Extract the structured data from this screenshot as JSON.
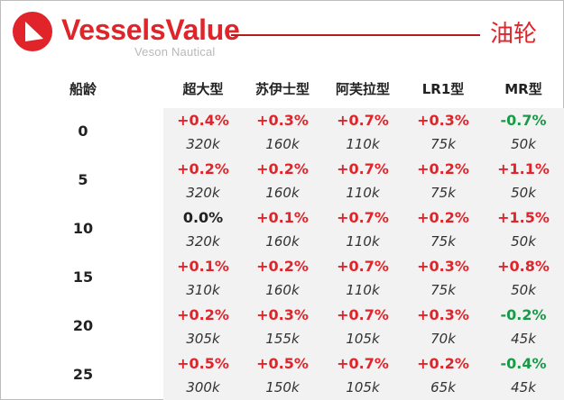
{
  "header": {
    "brand": "VesselsValue",
    "brand_sub": "Veson Nautical",
    "title": "油轮",
    "colors": {
      "brand_red": "#e0242a",
      "rule": "#b51d1d",
      "up": "#e0242a",
      "down": "#1a9a48"
    }
  },
  "table": {
    "age_header": "船龄",
    "columns": [
      "超大型",
      "苏伊士型",
      "阿芙拉型",
      "LR1型",
      "MR型"
    ],
    "rows": [
      {
        "age": "0",
        "cells": [
          {
            "pct": "+0.4%",
            "dir": "up",
            "val": "320k"
          },
          {
            "pct": "+0.3%",
            "dir": "up",
            "val": "160k"
          },
          {
            "pct": "+0.7%",
            "dir": "up",
            "val": "110k"
          },
          {
            "pct": "+0.3%",
            "dir": "up",
            "val": "75k"
          },
          {
            "pct": "-0.7%",
            "dir": "down",
            "val": "50k"
          }
        ]
      },
      {
        "age": "5",
        "cells": [
          {
            "pct": "+0.2%",
            "dir": "up",
            "val": "320k"
          },
          {
            "pct": "+0.2%",
            "dir": "up",
            "val": "160k"
          },
          {
            "pct": "+0.7%",
            "dir": "up",
            "val": "110k"
          },
          {
            "pct": "+0.2%",
            "dir": "up",
            "val": "75k"
          },
          {
            "pct": "+1.1%",
            "dir": "up",
            "val": "50k"
          }
        ]
      },
      {
        "age": "10",
        "cells": [
          {
            "pct": "0.0%",
            "dir": "flat",
            "val": "320k"
          },
          {
            "pct": "+0.1%",
            "dir": "up",
            "val": "160k"
          },
          {
            "pct": "+0.7%",
            "dir": "up",
            "val": "110k"
          },
          {
            "pct": "+0.2%",
            "dir": "up",
            "val": "75k"
          },
          {
            "pct": "+1.5%",
            "dir": "up",
            "val": "50k"
          }
        ]
      },
      {
        "age": "15",
        "cells": [
          {
            "pct": "+0.1%",
            "dir": "up",
            "val": "310k"
          },
          {
            "pct": "+0.2%",
            "dir": "up",
            "val": "160k"
          },
          {
            "pct": "+0.7%",
            "dir": "up",
            "val": "110k"
          },
          {
            "pct": "+0.3%",
            "dir": "up",
            "val": "75k"
          },
          {
            "pct": "+0.8%",
            "dir": "up",
            "val": "50k"
          }
        ]
      },
      {
        "age": "20",
        "cells": [
          {
            "pct": "+0.2%",
            "dir": "up",
            "val": "305k"
          },
          {
            "pct": "+0.3%",
            "dir": "up",
            "val": "155k"
          },
          {
            "pct": "+0.7%",
            "dir": "up",
            "val": "105k"
          },
          {
            "pct": "+0.3%",
            "dir": "up",
            "val": "70k"
          },
          {
            "pct": "-0.2%",
            "dir": "down",
            "val": "45k"
          }
        ]
      },
      {
        "age": "25",
        "cells": [
          {
            "pct": "+0.5%",
            "dir": "up",
            "val": "300k"
          },
          {
            "pct": "+0.5%",
            "dir": "up",
            "val": "150k"
          },
          {
            "pct": "+0.7%",
            "dir": "up",
            "val": "105k"
          },
          {
            "pct": "+0.2%",
            "dir": "up",
            "val": "65k"
          },
          {
            "pct": "-0.4%",
            "dir": "down",
            "val": "45k"
          }
        ]
      }
    ]
  }
}
